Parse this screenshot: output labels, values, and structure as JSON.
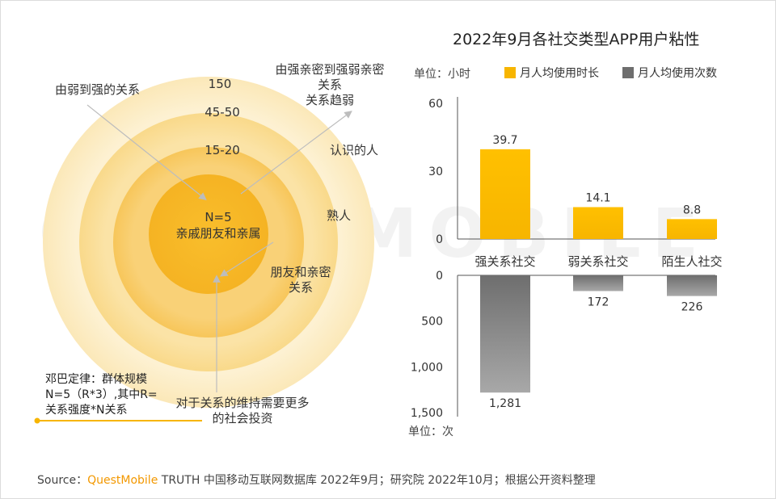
{
  "title": "2022年9月各社交类型APP用户粘性",
  "unit_top": "单位：小时",
  "unit_bottom": "单位：次",
  "legend": [
    {
      "name": "月人均使用时长",
      "color": "#f7b500"
    },
    {
      "name": "月人均使用次数",
      "color": "#6e6e6e"
    }
  ],
  "circle": {
    "ring_labels": [
      "150",
      "45-50",
      "15-20",
      "N=5"
    ],
    "center_label": "亲戚朋友和亲属",
    "arrow_left": "由弱到强的关系",
    "arrow_right": [
      "由强亲密到强弱亲密",
      "关系",
      "关系趋弱"
    ],
    "side_labels": [
      "认识的人",
      "熟人"
    ],
    "friends_label": [
      "朋友和亲密",
      "关系"
    ],
    "bottom_label": [
      "对于关系的维持需要更多",
      "的社会投资"
    ],
    "zipf_note": [
      "邓巴定律：群体规模",
      "N=5（R*3）,其中R=",
      "关系强度*N关系"
    ]
  },
  "chart_data": {
    "type": "bar",
    "categories": [
      "强关系社交",
      "弱关系社交",
      "陌生人社交"
    ],
    "series": [
      {
        "name": "月人均使用时长",
        "values": [
          39.7,
          14.1,
          8.8
        ],
        "labels": [
          "39.7",
          "14.1",
          "8.8"
        ],
        "ylim": [
          0,
          60
        ],
        "ticks": [
          "0",
          "30",
          "60"
        ]
      },
      {
        "name": "月人均使用次数",
        "values": [
          1281,
          172,
          226
        ],
        "labels": [
          "1,281",
          "172",
          "226"
        ],
        "ylim": [
          0,
          1500
        ],
        "ticks": [
          "0",
          "500",
          "1,000",
          "1,500"
        ]
      }
    ]
  },
  "watermark": "QUESTMOBILE",
  "source": {
    "prefix": "Source：",
    "brand": "QuestMobile",
    "rest": " TRUTH 中国移动互联网数据库 2022年9月；研究院 2022年10月；根据公开资料整理"
  }
}
